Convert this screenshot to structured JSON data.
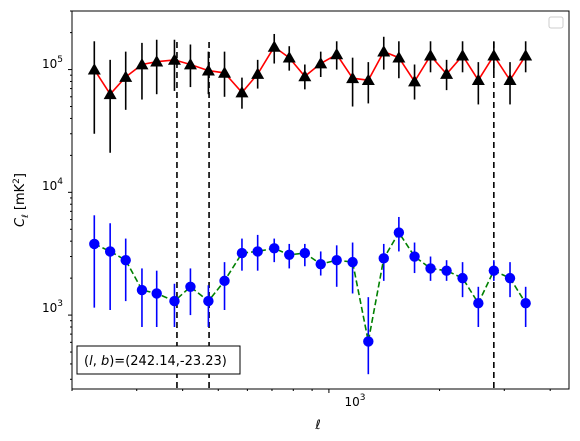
{
  "chart_data": {
    "type": "scatter",
    "xscale": "log",
    "yscale": "log",
    "xlim": [
      200,
      4500
    ],
    "ylim": [
      250,
      300000
    ],
    "xlabel": "ℓ",
    "ylabel_main": "C",
    "ylabel_sub": "ℓ",
    "ylabel_unit_open": "[mK",
    "ylabel_unit_sup": "2",
    "ylabel_unit_close": "]",
    "x_tick_labels": [
      {
        "value": 1000,
        "base": "10",
        "exp": "3"
      }
    ],
    "y_tick_labels": [
      {
        "value": 1000,
        "base": "10",
        "exp": "3"
      },
      {
        "value": 10000,
        "base": "10",
        "exp": "4"
      },
      {
        "value": 100000,
        "base": "10",
        "exp": "5"
      }
    ],
    "annotation": "(l, b)=(242.14,-23.23)",
    "annotation_prefix": "(",
    "annotation_l": "l",
    "annotation_sep": ", ",
    "annotation_b": "b",
    "annotation_suffix": ")=(242.14,-23.23)",
    "legend": "empty box, top-right",
    "vlines": [
      386,
      472,
      2810
    ],
    "series": [
      {
        "color": "#ff0000",
        "marker": "triangle",
        "marker_color": "#000000",
        "errbar_color": "#000000",
        "linestyle": "solid",
        "x": [
          230,
          254,
          280,
          310,
          340,
          380,
          420,
          470,
          520,
          580,
          640,
          710,
          780,
          860,
          950,
          1050,
          1160,
          1280,
          1410,
          1550,
          1710,
          1890,
          2090,
          2310,
          2550,
          2810,
          3110,
          3430
        ],
        "y": [
          100000,
          63000,
          87000,
          110000,
          116000,
          120000,
          110000,
          98000,
          94000,
          65000,
          92000,
          153000,
          125000,
          88000,
          112000,
          133000,
          85000,
          82000,
          140000,
          125000,
          80000,
          130000,
          92000,
          130000,
          82000,
          130000,
          82000,
          130000
        ],
        "ylo": [
          30000,
          21000,
          47000,
          57000,
          63000,
          67000,
          72000,
          63000,
          60000,
          48000,
          70000,
          112000,
          98000,
          69000,
          87000,
          100000,
          50000,
          53000,
          100000,
          85000,
          57000,
          95000,
          68000,
          95000,
          52000,
          95000,
          52000,
          95000
        ],
        "yhi": [
          170000,
          120000,
          140000,
          165000,
          175000,
          175000,
          160000,
          140000,
          140000,
          86000,
          120000,
          195000,
          155000,
          110000,
          140000,
          170000,
          125000,
          115000,
          185000,
          170000,
          110000,
          170000,
          120000,
          170000,
          115000,
          170000,
          115000,
          170000
        ]
      },
      {
        "color": "#008000",
        "marker": "circle",
        "marker_color": "#0000ff",
        "errbar_color": "#0000ff",
        "linestyle": "dashed",
        "x": [
          230,
          254,
          280,
          310,
          340,
          380,
          420,
          470,
          520,
          580,
          640,
          710,
          780,
          860,
          950,
          1050,
          1160,
          1280,
          1410,
          1550,
          1710,
          1890,
          2090,
          2310,
          2550,
          2810,
          3110,
          3430
        ],
        "y": [
          3800,
          3300,
          2800,
          1600,
          1500,
          1300,
          1700,
          1300,
          1900,
          3200,
          3300,
          3500,
          3100,
          3200,
          2600,
          2800,
          2700,
          610,
          2900,
          4700,
          3000,
          2400,
          2300,
          2000,
          1250,
          2300,
          2000,
          1250
        ],
        "ylo": [
          1150,
          1100,
          1300,
          800,
          800,
          800,
          1000,
          800,
          1100,
          2300,
          2300,
          2700,
          2400,
          2500,
          2100,
          1700,
          1500,
          330,
          1900,
          3300,
          2200,
          1900,
          1900,
          1400,
          800,
          1900,
          1400,
          800
        ],
        "yhi": [
          6500,
          5600,
          4200,
          2400,
          2300,
          1800,
          2400,
          1750,
          2700,
          4200,
          4500,
          4200,
          3800,
          3800,
          3300,
          3700,
          3900,
          1400,
          3800,
          6300,
          3900,
          3000,
          2800,
          2700,
          1700,
          2800,
          2700,
          1700
        ]
      }
    ]
  }
}
